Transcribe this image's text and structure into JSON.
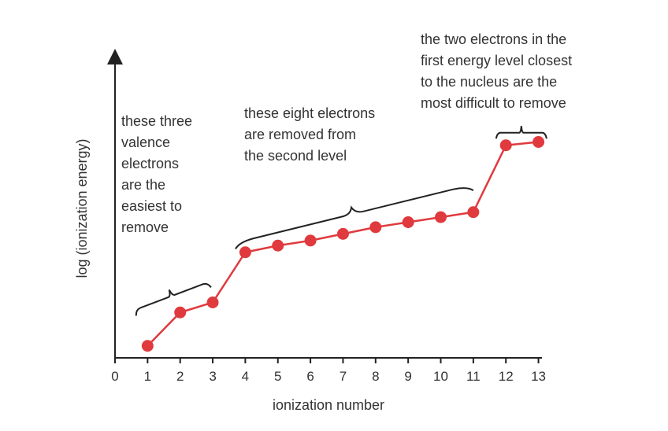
{
  "chart_data": {
    "type": "line",
    "xlabel": "ionization number",
    "ylabel": "log (ionization energy)",
    "x_ticks": [
      "0",
      "1",
      "2",
      "3",
      "4",
      "5",
      "6",
      "7",
      "8",
      "9",
      "10",
      "11",
      "12",
      "13"
    ],
    "xlim": [
      0,
      13
    ],
    "y_ticks_shown": false,
    "series": [
      {
        "color": "#e03a3e",
        "x": [
          1,
          2,
          3,
          4,
          5,
          6,
          7,
          8,
          9,
          10,
          11,
          12,
          13
        ],
        "y": [
          1.7,
          2.7,
          3.0,
          4.5,
          4.7,
          4.85,
          5.05,
          5.25,
          5.4,
          5.55,
          5.7,
          7.7,
          7.8
        ]
      }
    ],
    "annotations": [
      {
        "name": "valence",
        "text_lines": [
          "these three",
          "valence",
          "electrons",
          "are the",
          "easiest to",
          "remove"
        ],
        "brace_from": [
          0.65,
          2.6
        ],
        "brace_to": [
          2.95,
          3.45
        ]
      },
      {
        "name": "second-level",
        "text_lines": [
          "these eight electrons",
          "are removed from",
          "the second level"
        ],
        "brace_from": [
          3.7,
          4.6
        ],
        "brace_to": [
          11.0,
          6.35
        ]
      },
      {
        "name": "first-level",
        "text_lines": [
          "the two electrons in the",
          "first energy level closest",
          "to the nucleus are the",
          "most difficult to remove"
        ],
        "brace_from": [
          11.7,
          7.9
        ],
        "brace_to": [
          13.25,
          7.9
        ]
      }
    ]
  }
}
